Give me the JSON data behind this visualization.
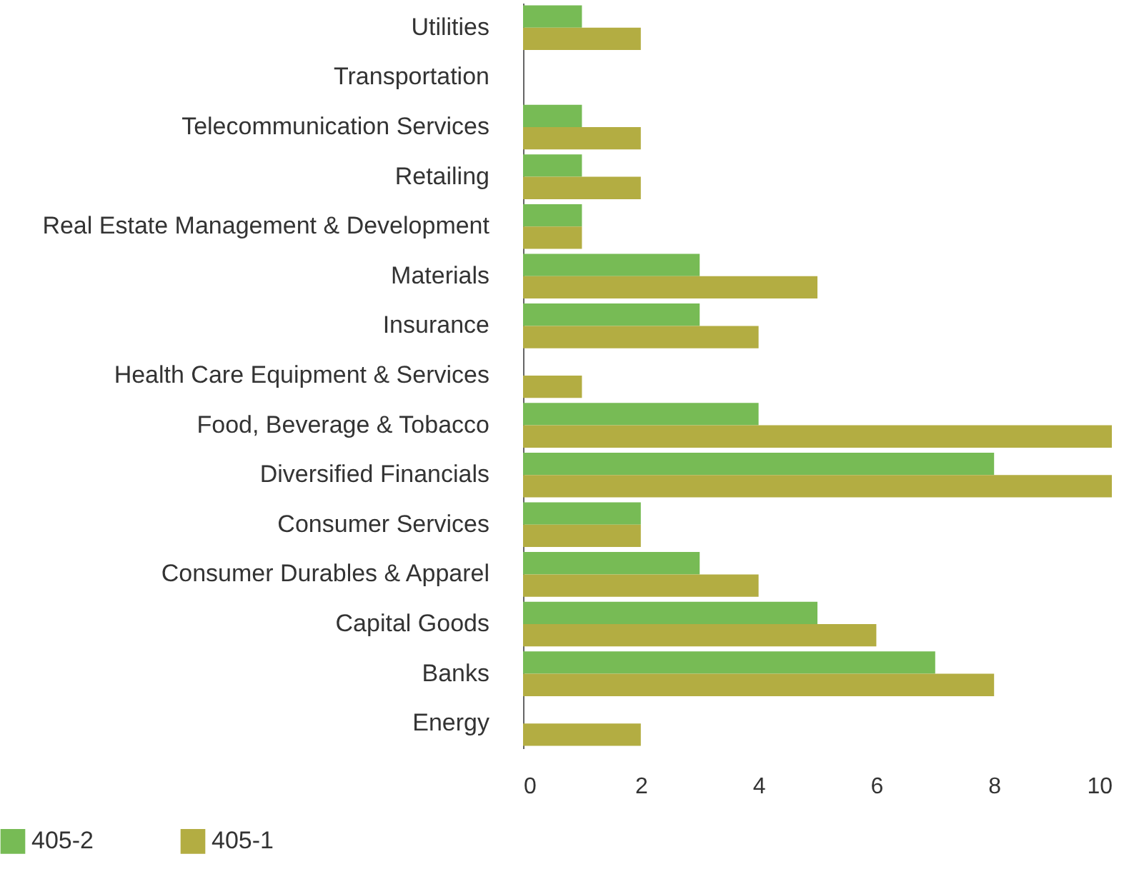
{
  "chart_data": {
    "type": "bar",
    "orientation": "horizontal",
    "categories": [
      "Utilities",
      "Transportation",
      "Telecommunication Services",
      "Retailing",
      "Real Estate Management & Development",
      "Materials",
      "Insurance",
      "Health Care Equipment & Services",
      "Food, Beverage & Tobacco",
      "Diversified Financials",
      "Consumer Services",
      "Consumer Durables & Apparel",
      "Capital Goods",
      "Banks",
      "Energy"
    ],
    "series": [
      {
        "name": "405-2",
        "color": "#77bb55",
        "values": [
          1,
          null,
          1,
          1,
          1,
          3,
          3,
          null,
          4,
          8,
          2,
          3,
          5,
          7,
          null
        ]
      },
      {
        "name": "405-1",
        "color": "#b3ad42",
        "values": [
          2,
          null,
          2,
          2,
          1,
          5,
          4,
          1,
          10,
          10,
          2,
          4,
          6,
          8,
          2
        ]
      }
    ],
    "xlim": [
      0,
      10
    ],
    "xticks": [
      0,
      2,
      4,
      6,
      8,
      10
    ],
    "grid": false,
    "legend": "bottom left"
  }
}
